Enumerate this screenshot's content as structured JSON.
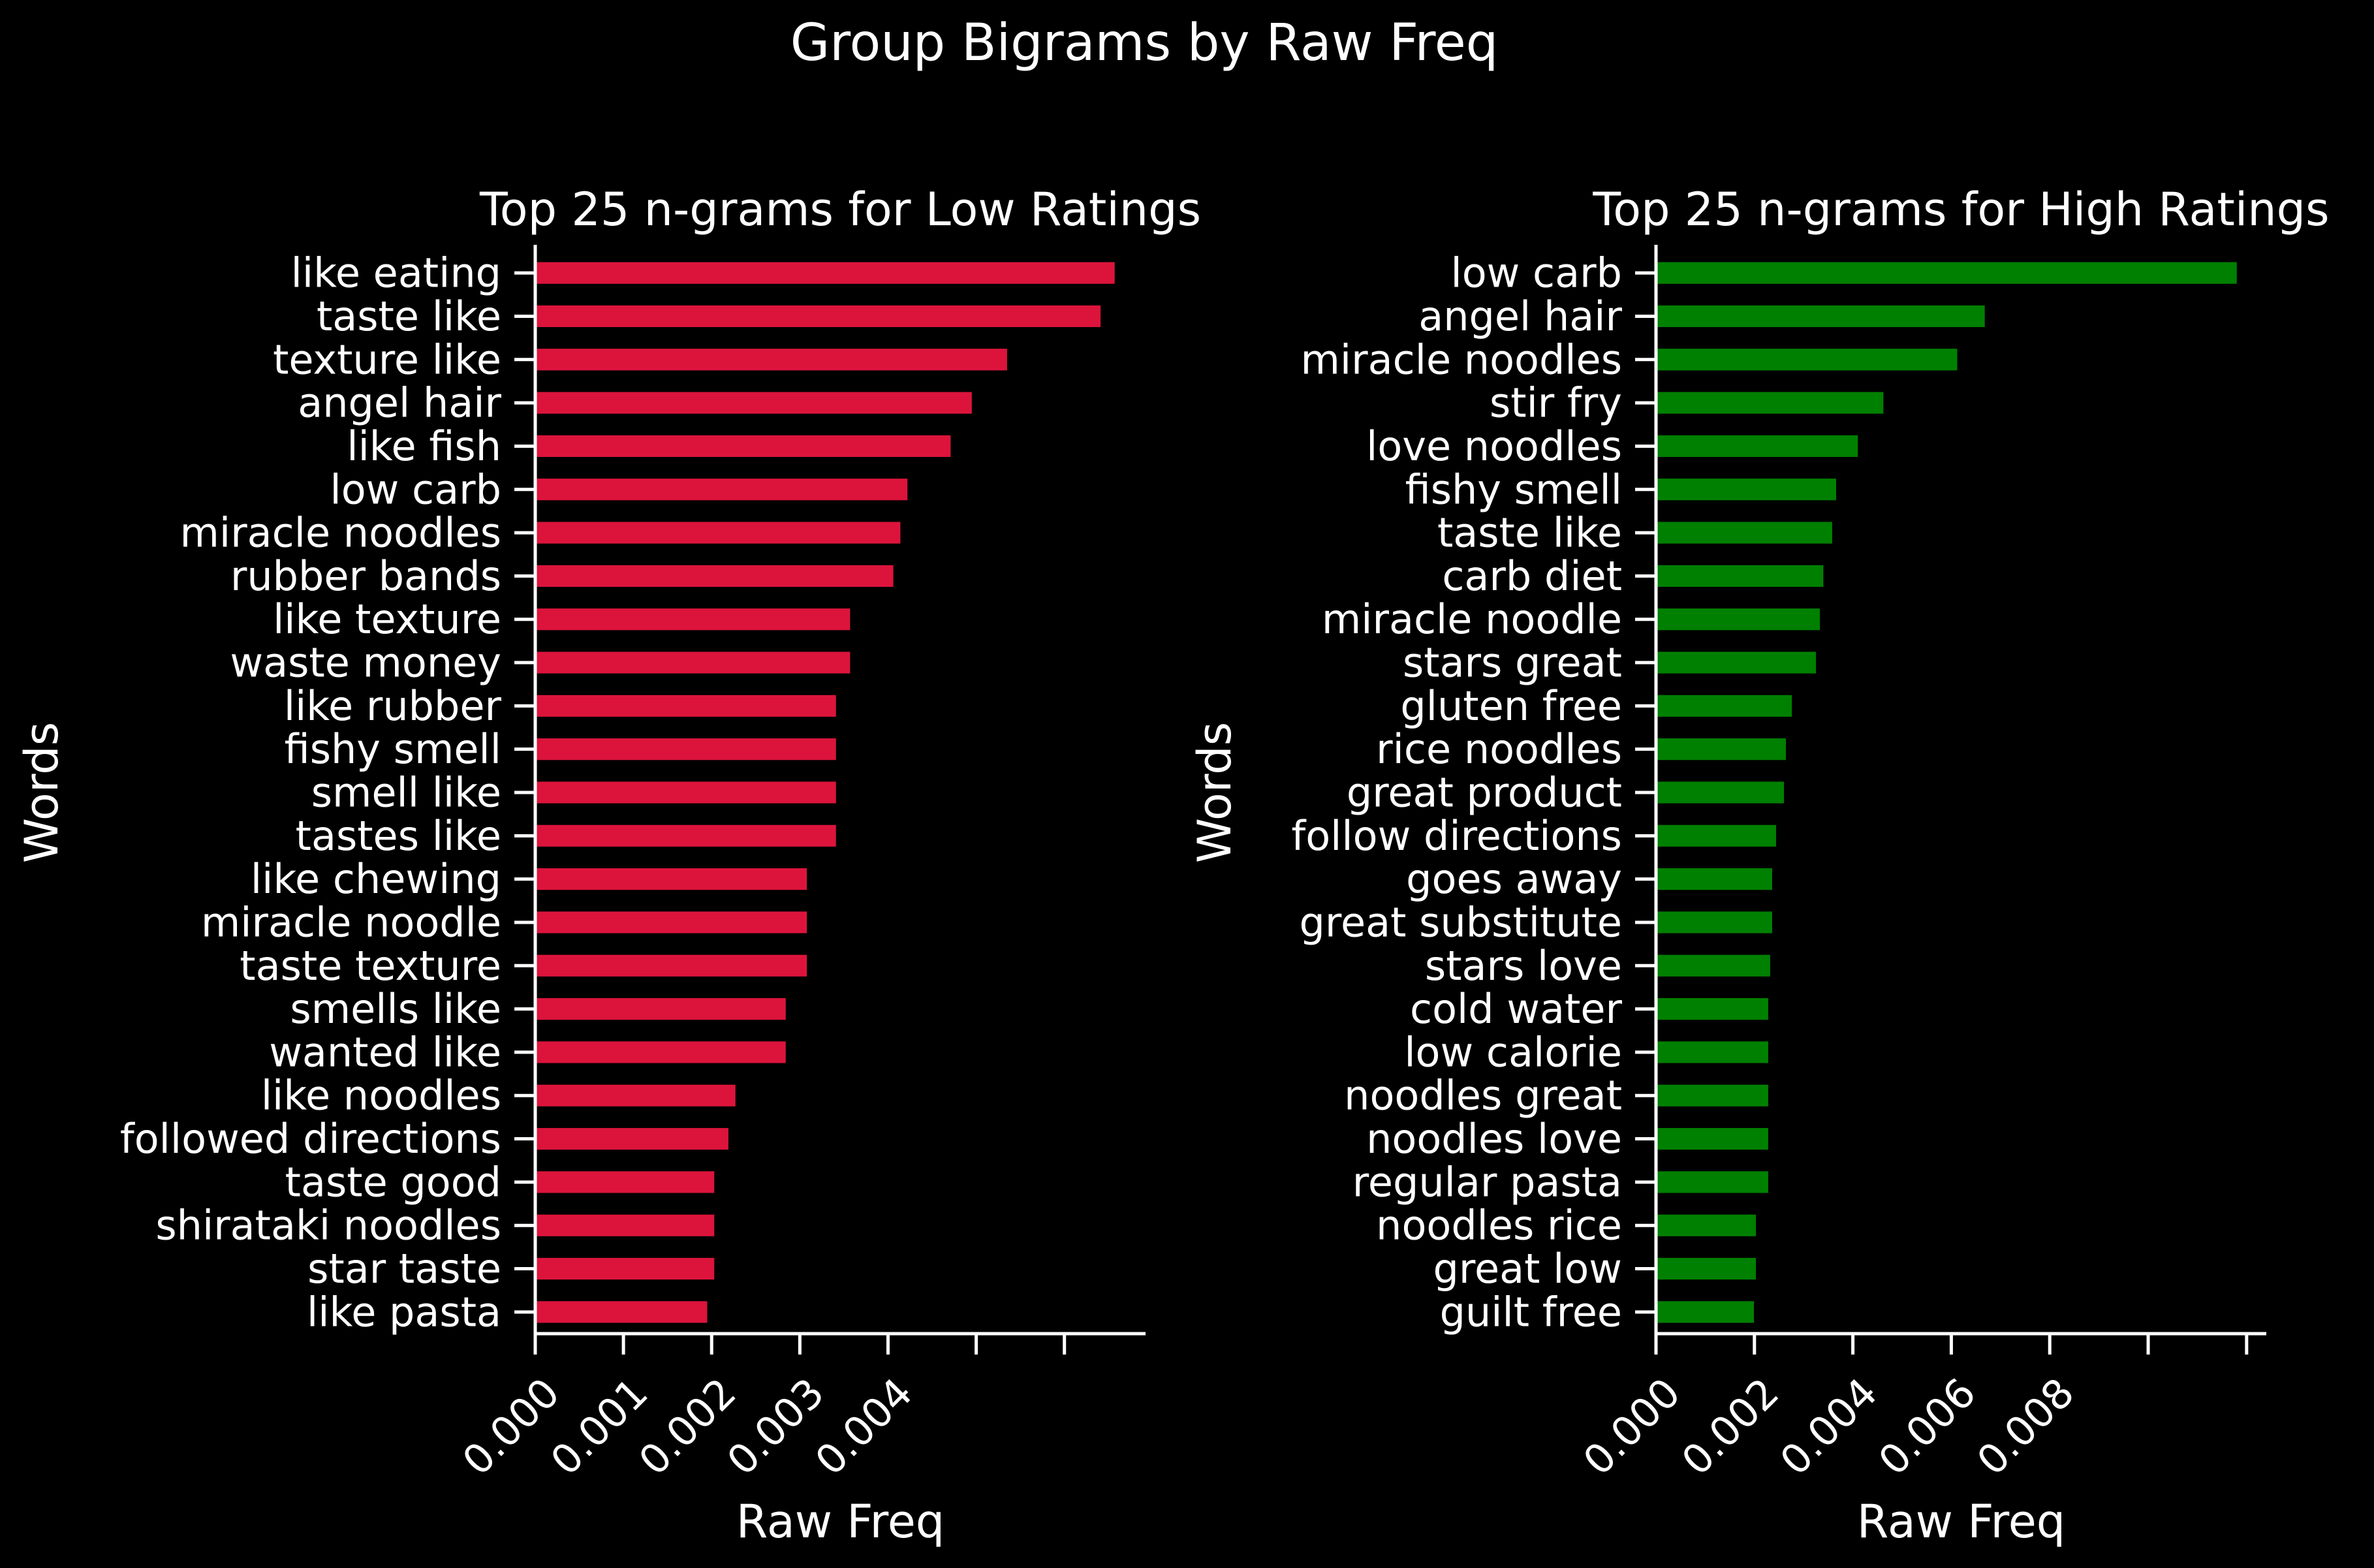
{
  "figure_title": "Group Bigrams by Raw Freq",
  "chart_data": [
    {
      "type": "bar",
      "orientation": "horizontal",
      "title": "Top 25 n-grams for Low Ratings",
      "xlabel": "Raw Freq",
      "ylabel": "Words",
      "color": "#dc143c",
      "xlim": [
        0,
        0.00692
      ],
      "xticks": [
        0.0,
        0.001,
        0.002,
        0.003,
        0.004,
        0.005,
        0.006
      ],
      "xtick_labels": [
        "0.000",
        "0.001",
        "0.002",
        "0.003",
        "0.004",
        "",
        ""
      ],
      "categories": [
        "like eating",
        "taste like",
        "texture like",
        "angel hair",
        "like fish",
        "low carb",
        "miracle noodles",
        "rubber bands",
        "like texture",
        "waste money",
        "like rubber",
        "fishy smell",
        "smell like",
        "tastes like",
        "like chewing",
        "miracle noodle",
        "taste texture",
        "smells like",
        "wanted like",
        "like noodles",
        "followed directions",
        "taste good",
        "shirataki noodles",
        "star taste",
        "like pasta"
      ],
      "values": [
        0.00657,
        0.00641,
        0.00535,
        0.00495,
        0.00471,
        0.00422,
        0.00414,
        0.00406,
        0.00357,
        0.00357,
        0.00341,
        0.00341,
        0.00341,
        0.00341,
        0.00308,
        0.00308,
        0.00308,
        0.00284,
        0.00284,
        0.00227,
        0.00219,
        0.00203,
        0.00203,
        0.00203,
        0.00195
      ],
      "grid": false,
      "legend": "none"
    },
    {
      "type": "bar",
      "orientation": "horizontal",
      "title": "Top 25 n-grams for High Ratings",
      "xlabel": "Raw Freq",
      "ylabel": "Words",
      "color": "#008000",
      "xlim": [
        0,
        0.0124
      ],
      "xticks": [
        0.0,
        0.002,
        0.004,
        0.006,
        0.008,
        0.01,
        0.012
      ],
      "xtick_labels": [
        "0.000",
        "0.002",
        "0.004",
        "0.006",
        "0.008",
        "",
        ""
      ],
      "categories": [
        "low carb",
        "angel hair",
        "miracle noodles",
        "stir fry",
        "love noodles",
        "fishy smell",
        "taste like",
        "carb diet",
        "miracle noodle",
        "stars great",
        "gluten free",
        "rice noodles",
        "great product",
        "follow directions",
        "goes away",
        "great substitute",
        "stars love",
        "cold water",
        "low calorie",
        "noodles great",
        "noodles love",
        "regular pasta",
        "noodles rice",
        "great low",
        "guilt free"
      ],
      "values": [
        0.0118,
        0.00668,
        0.00612,
        0.00462,
        0.0041,
        0.00366,
        0.00358,
        0.0034,
        0.00333,
        0.00325,
        0.00276,
        0.00264,
        0.0026,
        0.00244,
        0.00236,
        0.00236,
        0.00232,
        0.00228,
        0.00228,
        0.00228,
        0.00228,
        0.00228,
        0.00203,
        0.00203,
        0.00199
      ],
      "grid": false,
      "legend": "none"
    }
  ]
}
